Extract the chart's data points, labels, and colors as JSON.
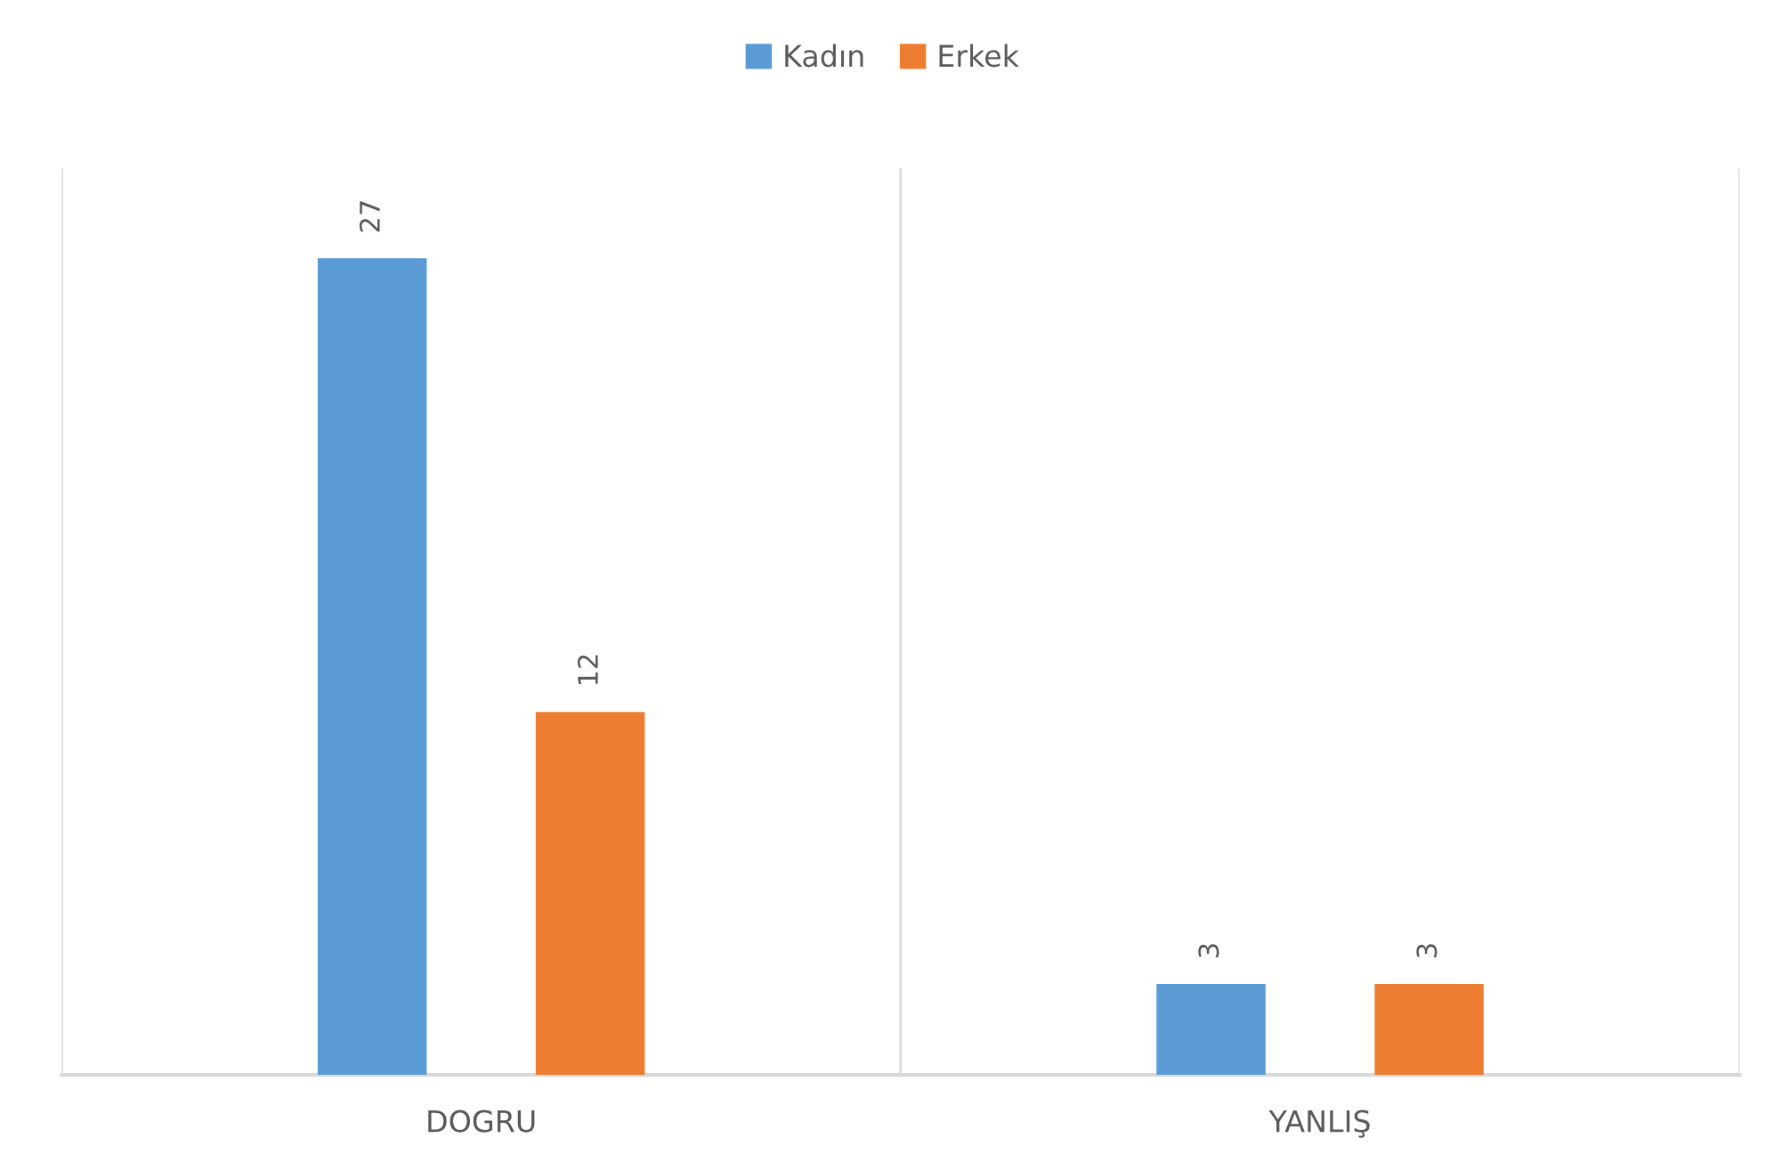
{
  "chart_data": {
    "type": "bar",
    "categories": [
      "DOGRU",
      "YANLIŞ"
    ],
    "series": [
      {
        "name": "Kadın",
        "color": "#5b9bd5",
        "values": [
          27,
          3
        ]
      },
      {
        "name": "Erkek",
        "color": "#ed7d31",
        "values": [
          12,
          3
        ]
      }
    ],
    "data_labels": true,
    "grid": "x",
    "legend": "top"
  }
}
